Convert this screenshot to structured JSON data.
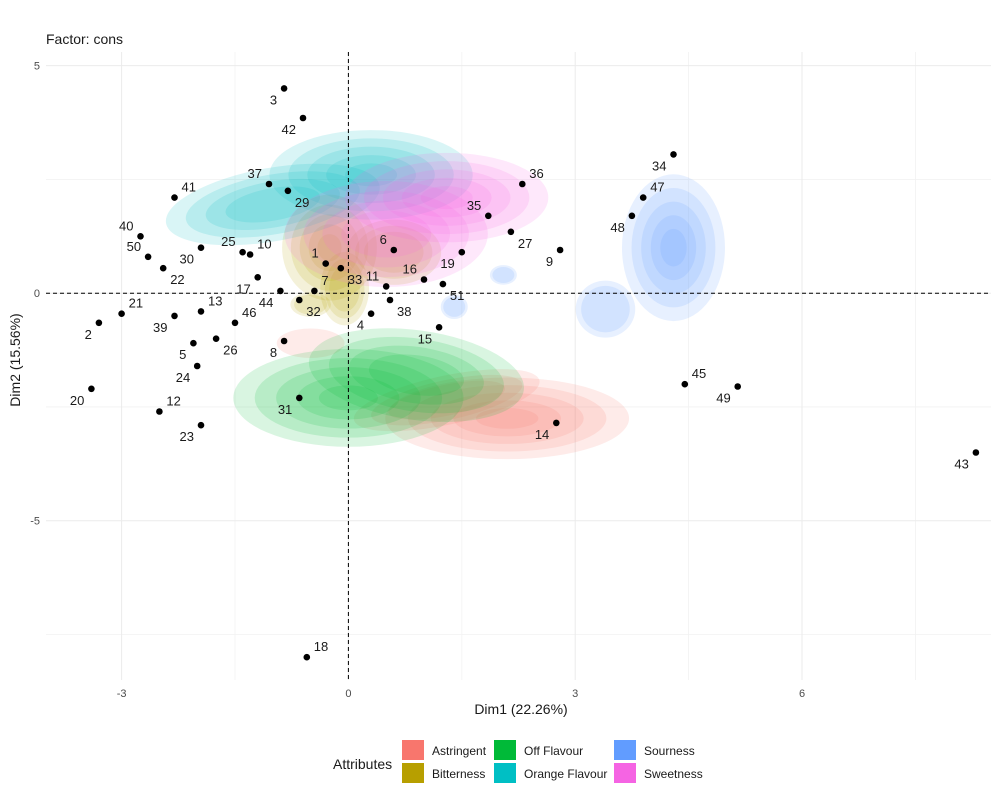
{
  "chart_data": {
    "type": "scatter",
    "title": "Factor: cons",
    "xlabel": "Dim1 (22.26%)",
    "ylabel": "Dim2 (15.56%)",
    "xlim": [
      -4,
      8.5
    ],
    "ylim": [
      -8.5,
      5.3
    ],
    "xticks": [
      -3,
      0,
      3,
      6
    ],
    "xtick_labels": [
      "-3",
      "0",
      "3",
      "6"
    ],
    "yticks": [
      5,
      0,
      -5
    ],
    "ytick_labels": [
      "5",
      "0",
      "-5"
    ],
    "reference_lines": {
      "x": 0,
      "y": 0,
      "style": "dashed"
    },
    "grid": true,
    "legend": {
      "title": "Attributes",
      "position": "bottom",
      "items": [
        {
          "label": "Astringent",
          "color": "#F8766D"
        },
        {
          "label": "Bitterness",
          "color": "#B79F00"
        },
        {
          "label": "Off Flavour",
          "color": "#00BA38"
        },
        {
          "label": "Orange Flavour",
          "color": "#00BFC4"
        },
        {
          "label": "Sourness",
          "color": "#619CFF"
        },
        {
          "label": "Sweetness",
          "color": "#F564E3"
        }
      ]
    },
    "density_regions": [
      {
        "attribute": "Astringent",
        "color": "#F8766D",
        "blobs": [
          {
            "x": 2.1,
            "y": -2.75,
            "sx": 0.9,
            "sy": 0.5,
            "r": 0,
            "strength": 1
          },
          {
            "x": 1.3,
            "y": -2.35,
            "sx": 0.7,
            "sy": 0.3,
            "r": -12,
            "strength": 0.5
          },
          {
            "x": -0.5,
            "y": -1.1,
            "sx": 0.25,
            "sy": 0.18,
            "r": 0,
            "strength": 0.25
          }
        ]
      },
      {
        "attribute": "Off Flavour",
        "color": "#00BA38",
        "blobs": [
          {
            "x": 0.0,
            "y": -2.3,
            "sx": 0.85,
            "sy": 0.6,
            "r": 0,
            "strength": 1
          },
          {
            "x": 0.9,
            "y": -1.8,
            "sx": 0.8,
            "sy": 0.55,
            "r": 8,
            "strength": 0.8
          }
        ]
      },
      {
        "attribute": "Bitterness",
        "color": "#B79F00",
        "blobs": [
          {
            "x": -0.25,
            "y": 1.0,
            "sx": 0.35,
            "sy": 0.65,
            "r": 0,
            "strength": 1
          },
          {
            "x": -0.05,
            "y": 0.1,
            "sx": 0.18,
            "sy": 0.45,
            "r": 0,
            "strength": 0.5
          },
          {
            "x": 0.6,
            "y": 0.9,
            "sx": 0.35,
            "sy": 0.4,
            "r": 0,
            "strength": 0.5
          },
          {
            "x": -0.5,
            "y": -0.25,
            "sx": 0.15,
            "sy": 0.15,
            "r": 0,
            "strength": 0.3
          }
        ]
      },
      {
        "attribute": "Orange Flavour",
        "color": "#00BFC4",
        "blobs": [
          {
            "x": 0.3,
            "y": 2.6,
            "sx": 0.75,
            "sy": 0.55,
            "r": 0,
            "strength": 1
          },
          {
            "x": -1.0,
            "y": 1.95,
            "sx": 0.8,
            "sy": 0.45,
            "r": -10,
            "strength": 0.8
          }
        ]
      },
      {
        "attribute": "Sweetness",
        "color": "#F564E3",
        "blobs": [
          {
            "x": 1.3,
            "y": 2.1,
            "sx": 0.75,
            "sy": 0.55,
            "r": 0,
            "strength": 1
          },
          {
            "x": 0.5,
            "y": 1.3,
            "sx": 0.75,
            "sy": 0.65,
            "r": 0,
            "strength": 0.8
          }
        ]
      },
      {
        "attribute": "Sourness",
        "color": "#619CFF",
        "blobs": [
          {
            "x": 4.3,
            "y": 1.0,
            "sx": 0.38,
            "sy": 0.9,
            "r": 0,
            "strength": 1
          },
          {
            "x": 3.4,
            "y": -0.35,
            "sx": 0.22,
            "sy": 0.35,
            "r": 0,
            "strength": 0.4
          },
          {
            "x": 2.05,
            "y": 0.4,
            "sx": 0.1,
            "sy": 0.12,
            "r": 0,
            "strength": 0.3
          },
          {
            "x": 1.4,
            "y": -0.3,
            "sx": 0.1,
            "sy": 0.15,
            "r": 0,
            "strength": 0.3
          }
        ]
      }
    ],
    "points": [
      {
        "label": "3",
        "x": -0.85,
        "y": 4.5,
        "pos": "bl"
      },
      {
        "label": "42",
        "x": -0.6,
        "y": 3.85,
        "pos": "bl"
      },
      {
        "label": "34",
        "x": 4.3,
        "y": 3.05,
        "pos": "bl"
      },
      {
        "label": "47",
        "x": 3.9,
        "y": 2.1,
        "pos": "tr"
      },
      {
        "label": "36",
        "x": 2.3,
        "y": 2.4,
        "pos": "tr"
      },
      {
        "label": "37",
        "x": -1.05,
        "y": 2.4,
        "pos": "tl"
      },
      {
        "label": "29",
        "x": -0.8,
        "y": 2.25,
        "pos": "br"
      },
      {
        "label": "41",
        "x": -2.3,
        "y": 2.1,
        "pos": "tr"
      },
      {
        "label": "35",
        "x": 1.85,
        "y": 1.7,
        "pos": "tl"
      },
      {
        "label": "48",
        "x": 3.75,
        "y": 1.7,
        "pos": "bl"
      },
      {
        "label": "27",
        "x": 2.15,
        "y": 1.35,
        "pos": "br"
      },
      {
        "label": "40",
        "x": -2.75,
        "y": 1.25,
        "pos": "tl"
      },
      {
        "label": "50",
        "x": -2.65,
        "y": 0.8,
        "pos": "tl"
      },
      {
        "label": "25",
        "x": -1.4,
        "y": 0.9,
        "pos": "tl"
      },
      {
        "label": "10",
        "x": -1.3,
        "y": 0.85,
        "pos": "tr"
      },
      {
        "label": "30",
        "x": -1.95,
        "y": 1.0,
        "pos": "bl"
      },
      {
        "label": "6",
        "x": 0.6,
        "y": 0.95,
        "pos": "tl"
      },
      {
        "label": "9",
        "x": 2.8,
        "y": 0.95,
        "pos": "bl"
      },
      {
        "label": "19",
        "x": 1.5,
        "y": 0.9,
        "pos": "bl"
      },
      {
        "label": "1",
        "x": -0.3,
        "y": 0.65,
        "pos": "tl"
      },
      {
        "label": "33",
        "x": -0.1,
        "y": 0.55,
        "pos": "br"
      },
      {
        "label": "22",
        "x": -2.45,
        "y": 0.55,
        "pos": "br"
      },
      {
        "label": "16",
        "x": 1.0,
        "y": 0.3,
        "pos": "tl"
      },
      {
        "label": "11",
        "x": 0.5,
        "y": 0.15,
        "pos": "tl"
      },
      {
        "label": "17",
        "x": -1.2,
        "y": 0.35,
        "pos": "bl"
      },
      {
        "label": "7",
        "x": -0.45,
        "y": 0.05,
        "pos": "tr"
      },
      {
        "label": "44",
        "x": -0.9,
        "y": 0.05,
        "pos": "bl"
      },
      {
        "label": "51",
        "x": 1.25,
        "y": 0.2,
        "pos": "br"
      },
      {
        "label": "38",
        "x": 0.55,
        "y": -0.15,
        "pos": "br"
      },
      {
        "label": "32",
        "x": -0.65,
        "y": -0.15,
        "pos": "br"
      },
      {
        "label": "21",
        "x": -3.0,
        "y": -0.45,
        "pos": "tr"
      },
      {
        "label": "13",
        "x": -1.95,
        "y": -0.4,
        "pos": "tr"
      },
      {
        "label": "2",
        "x": -3.3,
        "y": -0.65,
        "pos": "bl"
      },
      {
        "label": "39",
        "x": -2.3,
        "y": -0.5,
        "pos": "bl"
      },
      {
        "label": "46",
        "x": -1.5,
        "y": -0.65,
        "pos": "tr"
      },
      {
        "label": "4",
        "x": 0.3,
        "y": -0.45,
        "pos": "bl"
      },
      {
        "label": "15",
        "x": 1.2,
        "y": -0.75,
        "pos": "bl"
      },
      {
        "label": "5",
        "x": -2.05,
        "y": -1.1,
        "pos": "bl"
      },
      {
        "label": "26",
        "x": -1.75,
        "y": -1.0,
        "pos": "br"
      },
      {
        "label": "8",
        "x": -0.85,
        "y": -1.05,
        "pos": "bl"
      },
      {
        "label": "24",
        "x": -2.0,
        "y": -1.6,
        "pos": "bl"
      },
      {
        "label": "45",
        "x": 4.45,
        "y": -2.0,
        "pos": "tr"
      },
      {
        "label": "49",
        "x": 5.15,
        "y": -2.05,
        "pos": "bl"
      },
      {
        "label": "31",
        "x": -0.65,
        "y": -2.3,
        "pos": "bl"
      },
      {
        "label": "20",
        "x": -3.4,
        "y": -2.1,
        "pos": "bl"
      },
      {
        "label": "12",
        "x": -2.5,
        "y": -2.6,
        "pos": "tr"
      },
      {
        "label": "23",
        "x": -1.95,
        "y": -2.9,
        "pos": "bl"
      },
      {
        "label": "14",
        "x": 2.75,
        "y": -2.85,
        "pos": "bl"
      },
      {
        "label": "43",
        "x": 8.3,
        "y": -3.5,
        "pos": "bl"
      },
      {
        "label": "18",
        "x": -0.55,
        "y": -8.0,
        "pos": "tr"
      }
    ]
  }
}
